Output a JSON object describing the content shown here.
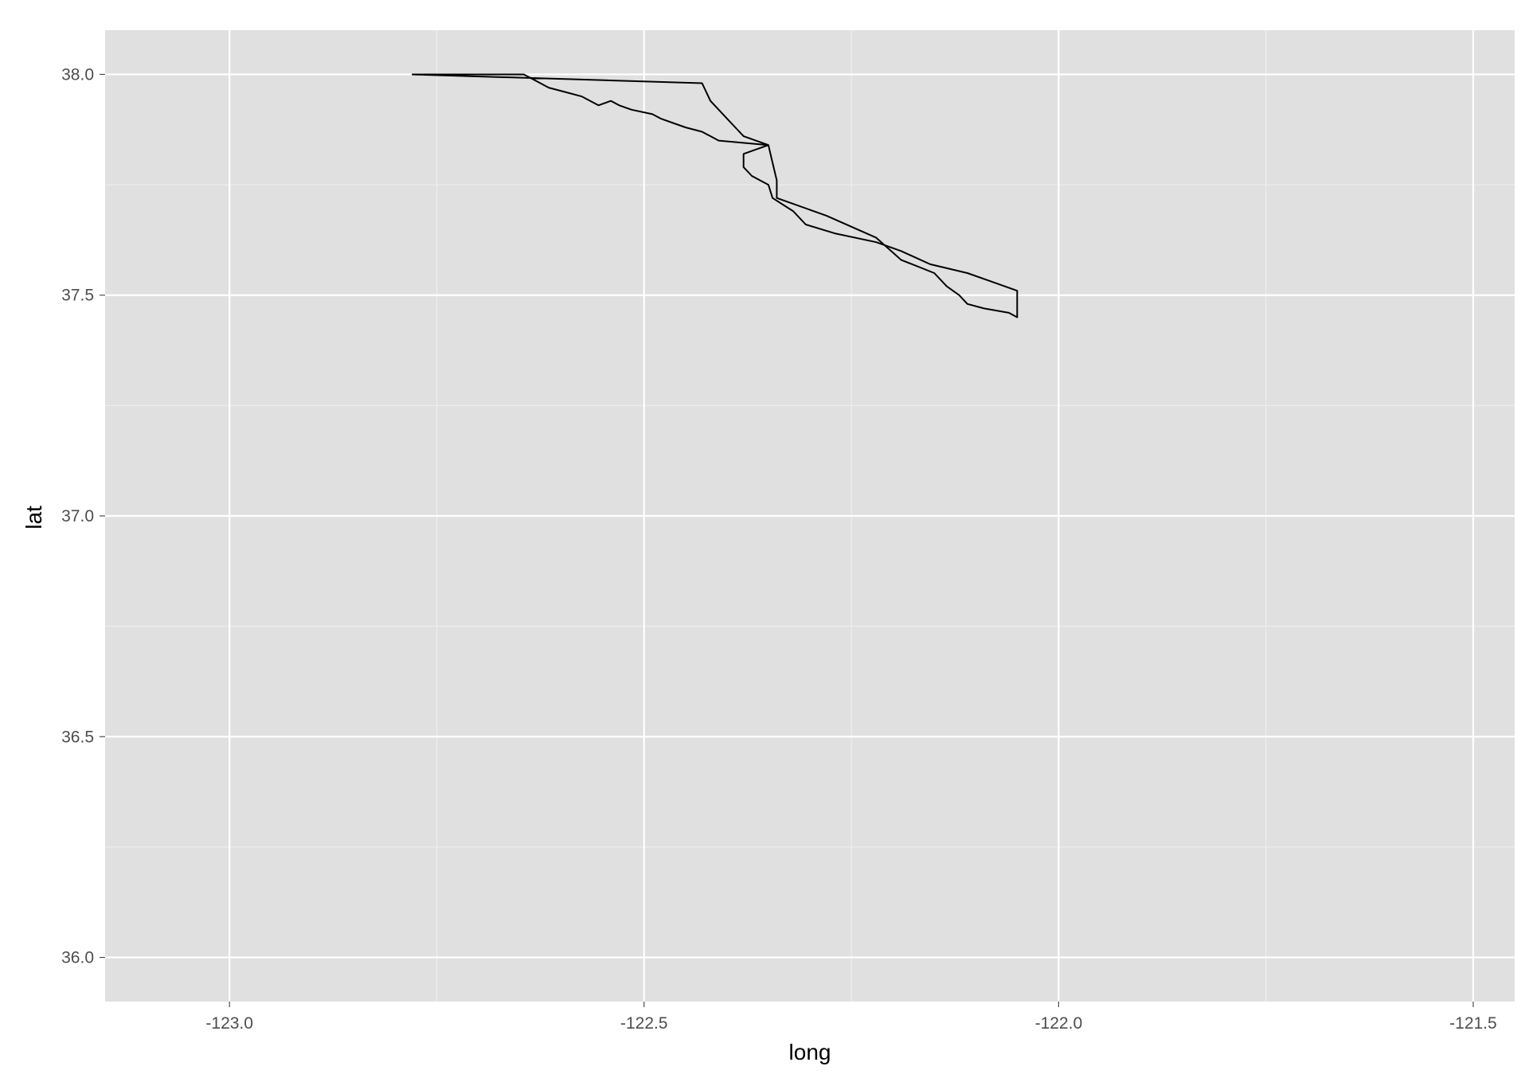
{
  "chart_data": {
    "type": "line",
    "title": "",
    "xlabel": "long",
    "ylabel": "lat",
    "xlim": [
      -123.15,
      -121.45
    ],
    "ylim": [
      35.9,
      38.1
    ],
    "x_ticks": [
      -123.0,
      -122.5,
      -122.0,
      -121.5
    ],
    "x_tick_labels": [
      "-123.0",
      "-122.5",
      "-122.0",
      "-121.5"
    ],
    "y_ticks": [
      36.0,
      36.5,
      37.0,
      37.5,
      38.0
    ],
    "y_tick_labels": [
      "36.0",
      "36.5",
      "37.0",
      "37.5",
      "38.0"
    ],
    "grid": true,
    "legend": "none",
    "series": [
      {
        "x": [
          -122.78,
          -122.43,
          -122.42,
          -122.41,
          -122.4,
          -122.39,
          -122.38,
          -122.35,
          -122.345,
          -122.34,
          -122.34,
          -122.28,
          -122.22,
          -122.19,
          -122.15,
          -122.135,
          -122.12,
          -122.11,
          -122.09,
          -122.06,
          -122.05,
          -122.05,
          -122.05,
          -122.08,
          -122.11,
          -122.155,
          -122.19,
          -122.22,
          -122.27,
          -122.305,
          -122.32,
          -122.345,
          -122.35,
          -122.37,
          -122.38,
          -122.38,
          -122.35,
          -122.41,
          -122.43,
          -122.45,
          -122.465,
          -122.48,
          -122.49,
          -122.515,
          -122.53,
          -122.54,
          -122.555,
          -122.575,
          -122.595,
          -122.615,
          -122.625,
          -122.635,
          -122.645,
          -122.655,
          -122.675,
          -122.69,
          -122.715,
          -122.74,
          -122.755,
          -122.78
        ],
        "y": [
          38.0,
          37.98,
          37.94,
          37.92,
          37.9,
          37.88,
          37.86,
          37.84,
          37.8,
          37.76,
          37.72,
          37.68,
          37.63,
          37.58,
          37.55,
          37.52,
          37.5,
          37.48,
          37.47,
          37.46,
          37.45,
          37.49,
          37.51,
          37.53,
          37.55,
          37.57,
          37.6,
          37.62,
          37.64,
          37.66,
          37.69,
          37.72,
          37.75,
          37.77,
          37.79,
          37.82,
          37.84,
          37.85,
          37.87,
          37.88,
          37.89,
          37.9,
          37.91,
          37.92,
          37.93,
          37.94,
          37.93,
          37.95,
          37.96,
          37.97,
          37.98,
          37.99,
          38.0,
          38.0,
          38.0,
          38.0,
          38.0,
          38.0,
          38.0,
          38.0
        ]
      }
    ]
  }
}
